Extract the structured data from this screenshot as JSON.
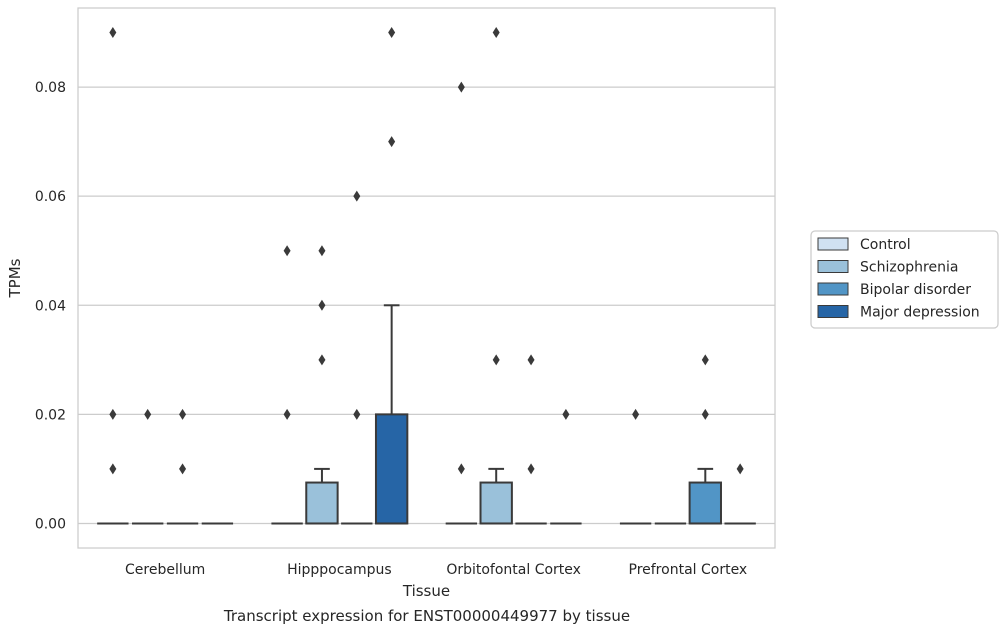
{
  "caption": "Transcript expression for ENST00000449977 by tissue",
  "chart_data": {
    "type": "boxplot",
    "xlabel": "Tissue",
    "ylabel": "TPMs",
    "ylim": [
      -0.0045,
      0.0945
    ],
    "y_ticks": [
      "0.00",
      "0.02",
      "0.04",
      "0.06",
      "0.08"
    ],
    "grid": "horizontal",
    "legend_position": "right",
    "categories": [
      "Cerebellum",
      "Hipppocampus",
      "Orbitofontal Cortex",
      "Prefrontal Cortex"
    ],
    "series": [
      {
        "name": "Control",
        "color": "#d0e1f2",
        "boxes": [
          {
            "q1": 0,
            "median": 0,
            "q3": 0,
            "whisker_low": 0,
            "whisker_high": 0,
            "outliers": [
              0.01,
              0.02,
              0.09
            ]
          },
          {
            "q1": 0,
            "median": 0,
            "q3": 0,
            "whisker_low": 0,
            "whisker_high": 0,
            "outliers": [
              0.02,
              0.05
            ]
          },
          {
            "q1": 0,
            "median": 0,
            "q3": 0,
            "whisker_low": 0,
            "whisker_high": 0,
            "outliers": [
              0.01,
              0.08
            ]
          },
          {
            "q1": 0,
            "median": 0,
            "q3": 0,
            "whisker_low": 0,
            "whisker_high": 0,
            "outliers": [
              0.02
            ]
          }
        ]
      },
      {
        "name": "Schizophrenia",
        "color": "#9ac1da",
        "boxes": [
          {
            "q1": 0,
            "median": 0,
            "q3": 0,
            "whisker_low": 0,
            "whisker_high": 0,
            "outliers": [
              0.02
            ]
          },
          {
            "q1": 0,
            "median": 0,
            "q3": 0.0075,
            "whisker_low": 0,
            "whisker_high": 0.01,
            "outliers": [
              0.03,
              0.04,
              0.05
            ]
          },
          {
            "q1": 0,
            "median": 0,
            "q3": 0.0075,
            "whisker_low": 0,
            "whisker_high": 0.01,
            "outliers": [
              0.03,
              0.09
            ]
          },
          {
            "q1": 0,
            "median": 0,
            "q3": 0,
            "whisker_low": 0,
            "whisker_high": 0,
            "outliers": []
          }
        ]
      },
      {
        "name": "Bipolar disorder",
        "color": "#5195c6",
        "boxes": [
          {
            "q1": 0,
            "median": 0,
            "q3": 0,
            "whisker_low": 0,
            "whisker_high": 0,
            "outliers": [
              0.01,
              0.02
            ]
          },
          {
            "q1": 0,
            "median": 0,
            "q3": 0,
            "whisker_low": 0,
            "whisker_high": 0,
            "outliers": [
              0.02,
              0.06
            ]
          },
          {
            "q1": 0,
            "median": 0,
            "q3": 0,
            "whisker_low": 0,
            "whisker_high": 0,
            "outliers": [
              0.01,
              0.03
            ]
          },
          {
            "q1": 0,
            "median": 0,
            "q3": 0.0075,
            "whisker_low": 0,
            "whisker_high": 0.01,
            "outliers": [
              0.02,
              0.03
            ]
          }
        ]
      },
      {
        "name": "Major depression",
        "color": "#2665a6",
        "boxes": [
          {
            "q1": 0,
            "median": 0,
            "q3": 0,
            "whisker_low": 0,
            "whisker_high": 0,
            "outliers": []
          },
          {
            "q1": 0,
            "median": 0,
            "q3": 0.02,
            "whisker_low": 0,
            "whisker_high": 0.04,
            "outliers": [
              0.07,
              0.09
            ]
          },
          {
            "q1": 0,
            "median": 0,
            "q3": 0,
            "whisker_low": 0,
            "whisker_high": 0,
            "outliers": [
              0.02
            ]
          },
          {
            "q1": 0,
            "median": 0,
            "q3": 0,
            "whisker_low": 0,
            "whisker_high": 0,
            "outliers": [
              0.01
            ]
          }
        ]
      }
    ]
  }
}
